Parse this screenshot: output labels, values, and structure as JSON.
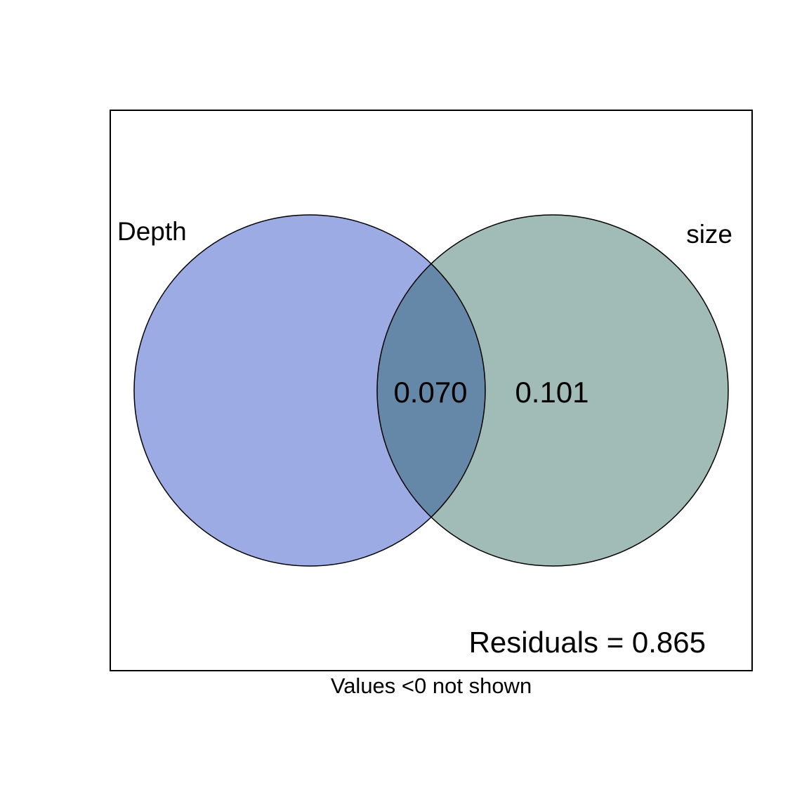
{
  "venn": {
    "sets": [
      {
        "name": "Depth",
        "color": "#9DABE5"
      },
      {
        "name": "size",
        "color": "#A1BCB7"
      }
    ],
    "overlap_color": "#6588A8",
    "fractions": {
      "depth_only": "",
      "shared": "0.070",
      "size_only": "0.101"
    },
    "residuals_text": "Residuals = 0.865",
    "note": "Values <0 not shown"
  }
}
